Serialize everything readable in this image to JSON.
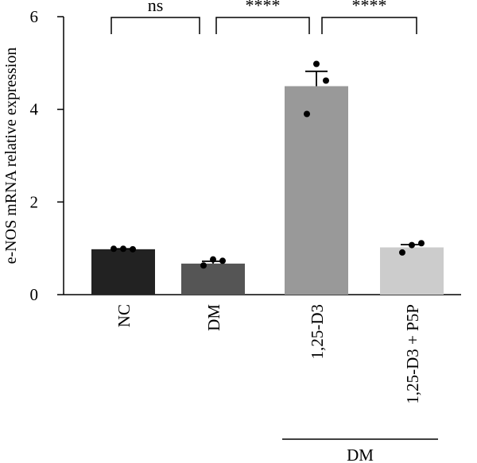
{
  "chart_data": {
    "type": "bar",
    "ylabel": "e-NOS mRNA relative expression",
    "xlabel": "",
    "ylim": [
      0,
      6
    ],
    "yticks": [
      "0",
      "2",
      "4",
      "6"
    ],
    "grid": false,
    "categories": [
      "NC",
      "DM",
      "1,25-D3",
      "1,25-D3 + P5P"
    ],
    "values": [
      0.98,
      0.67,
      4.5,
      1.02
    ],
    "errors": [
      0.01,
      0.05,
      0.32,
      0.06
    ],
    "points": [
      [
        0.99,
        0.99,
        0.98
      ],
      [
        0.63,
        0.76,
        0.73
      ],
      [
        3.9,
        4.98,
        4.62
      ],
      [
        0.91,
        1.07,
        1.11
      ]
    ],
    "bar_colors": [
      "#222222",
      "#555555",
      "#999999",
      "#cccccc"
    ],
    "significance": [
      {
        "from": 0,
        "to": 1,
        "label": "ns"
      },
      {
        "from": 1,
        "to": 2,
        "label": "****"
      },
      {
        "from": 2,
        "to": 3,
        "label": "****"
      }
    ],
    "group": {
      "label": "DM",
      "from": 2,
      "to": 3
    }
  }
}
